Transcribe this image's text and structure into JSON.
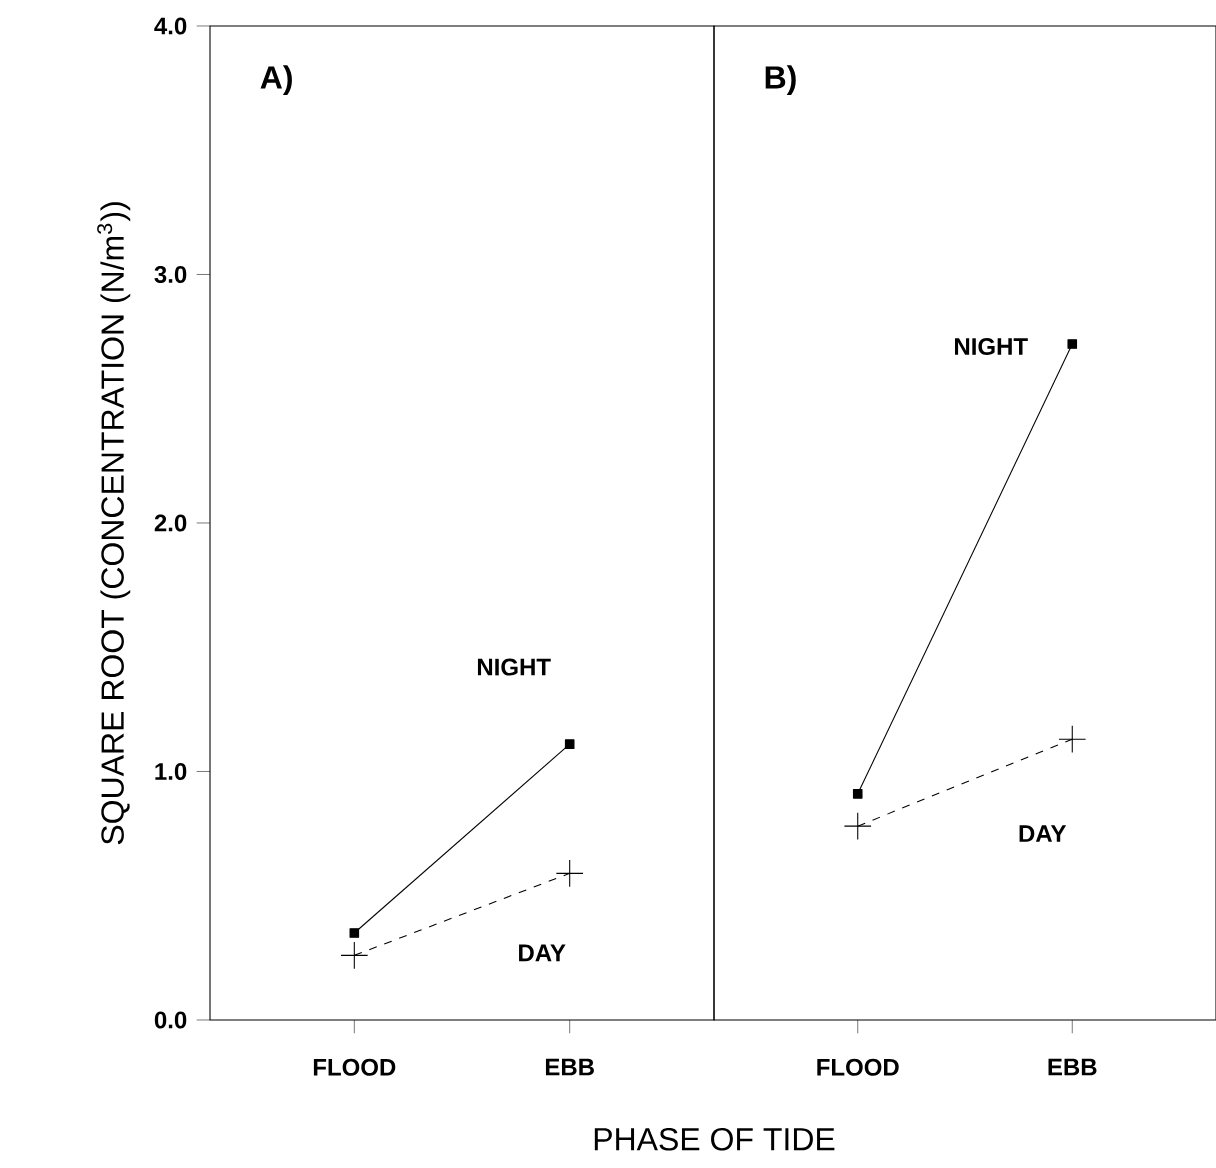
{
  "chart_data": [
    {
      "type": "line",
      "title": "A)",
      "ylabel": "SQUARE ROOT (CONCENTRATION (N/m$^{3}$))",
      "xlabel": "PHASE OF TIDE",
      "categories": [
        "FLOOD",
        "EBB"
      ],
      "ylim": [
        0,
        4
      ],
      "yticks": [
        {
          "value": 0,
          "label": "0.0"
        },
        {
          "value": 1,
          "label": "1.0"
        },
        {
          "value": 2,
          "label": "2.0"
        },
        {
          "value": 3,
          "label": "3.0"
        },
        {
          "value": 4,
          "label": "4.0"
        }
      ],
      "grid": false,
      "series": [
        {
          "name": "NIGHT",
          "color": "#000000",
          "values": [
            0.35,
            1.11
          ],
          "marker": "square",
          "line_style": "solid"
        },
        {
          "name": "DAY",
          "color": "#000000",
          "values": [
            0.26,
            0.59
          ],
          "marker": "cross",
          "line_style": "dashed"
        }
      ]
    },
    {
      "type": "line",
      "title": "B)",
      "categories": [
        "FLOOD",
        "EBB"
      ],
      "ylim": [
        0,
        4
      ],
      "tick_labels": "x",
      "grid": false,
      "series": [
        {
          "name": "NIGHT",
          "color": "#000000",
          "values": [
            0.91,
            2.72
          ],
          "marker": "square",
          "line_style": "solid"
        },
        {
          "name": "DAY",
          "color": "#000000",
          "values": [
            0.78,
            1.13
          ],
          "marker": "cross",
          "line_style": "dashed"
        }
      ]
    }
  ]
}
